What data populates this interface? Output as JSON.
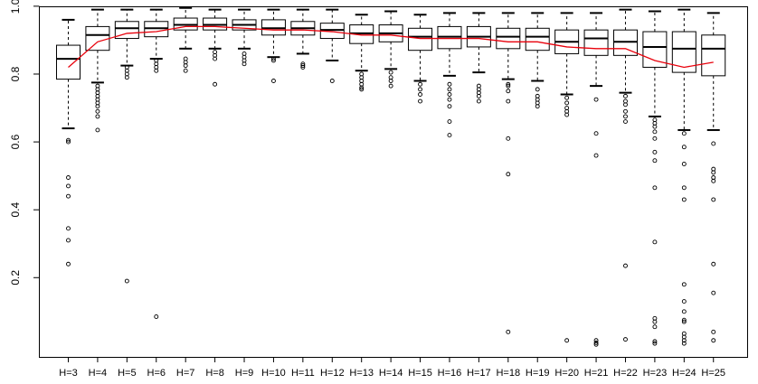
{
  "chart_data": {
    "type": "boxplot",
    "title": "",
    "xlabel": "",
    "ylabel": "",
    "ylim": [
      0.0,
      1.02
    ],
    "yticks": [
      {
        "value": 0.2,
        "label": "0.2"
      },
      {
        "value": 0.4,
        "label": "0.4"
      },
      {
        "value": 0.6,
        "label": "0.6"
      },
      {
        "value": 0.8,
        "label": "0.8"
      },
      {
        "value": 1.0,
        "label": "1.0"
      }
    ],
    "grid": false,
    "legend": "none",
    "colors": {
      "box": "#000000",
      "trend": "#e8000b"
    },
    "categories": [
      "H=3",
      "H=4",
      "H=5",
      "H=6",
      "H=7",
      "H=8",
      "H=9",
      "H=10",
      "H=11",
      "H=12",
      "H=13",
      "H=14",
      "H=15",
      "H=16",
      "H=17",
      "H=18",
      "H=19",
      "H=20",
      "H=21",
      "H=22",
      "H=23",
      "H=24",
      "H=25"
    ],
    "boxes": [
      {
        "low": 0.64,
        "q1": 0.785,
        "median": 0.845,
        "q3": 0.885,
        "high": 0.96,
        "outliers": [
          0.605,
          0.6,
          0.495,
          0.47,
          0.44,
          0.345,
          0.31,
          0.24
        ]
      },
      {
        "low": 0.775,
        "q1": 0.87,
        "median": 0.915,
        "q3": 0.94,
        "high": 0.99,
        "outliers": [
          0.765,
          0.755,
          0.745,
          0.735,
          0.725,
          0.715,
          0.705,
          0.69,
          0.675,
          0.635
        ]
      },
      {
        "low": 0.825,
        "q1": 0.905,
        "median": 0.935,
        "q3": 0.955,
        "high": 0.99,
        "outliers": [
          0.82,
          0.81,
          0.8,
          0.79,
          0.19
        ]
      },
      {
        "low": 0.845,
        "q1": 0.91,
        "median": 0.935,
        "q3": 0.955,
        "high": 0.99,
        "outliers": [
          0.84,
          0.83,
          0.82,
          0.81,
          0.085
        ]
      },
      {
        "low": 0.875,
        "q1": 0.93,
        "median": 0.945,
        "q3": 0.965,
        "high": 0.995,
        "outliers": [
          0.845,
          0.835,
          0.825,
          0.81
        ]
      },
      {
        "low": 0.875,
        "q1": 0.93,
        "median": 0.945,
        "q3": 0.965,
        "high": 0.99,
        "outliers": [
          0.865,
          0.855,
          0.845,
          0.77
        ]
      },
      {
        "low": 0.875,
        "q1": 0.93,
        "median": 0.945,
        "q3": 0.96,
        "high": 0.99,
        "outliers": [
          0.86,
          0.85,
          0.84,
          0.83
        ]
      },
      {
        "low": 0.85,
        "q1": 0.915,
        "median": 0.935,
        "q3": 0.96,
        "high": 0.99,
        "outliers": [
          0.845,
          0.84,
          0.78
        ]
      },
      {
        "low": 0.86,
        "q1": 0.915,
        "median": 0.935,
        "q3": 0.955,
        "high": 0.99,
        "outliers": [
          0.83,
          0.825,
          0.82
        ]
      },
      {
        "low": 0.84,
        "q1": 0.905,
        "median": 0.93,
        "q3": 0.95,
        "high": 0.99,
        "outliers": [
          0.78
        ]
      },
      {
        "low": 0.81,
        "q1": 0.89,
        "median": 0.92,
        "q3": 0.945,
        "high": 0.975,
        "outliers": [
          0.8,
          0.79,
          0.78,
          0.77,
          0.76,
          0.755
        ]
      },
      {
        "low": 0.815,
        "q1": 0.895,
        "median": 0.92,
        "q3": 0.945,
        "high": 0.985,
        "outliers": [
          0.805,
          0.79,
          0.78,
          0.765
        ]
      },
      {
        "low": 0.78,
        "q1": 0.87,
        "median": 0.91,
        "q3": 0.935,
        "high": 0.975,
        "outliers": [
          0.77,
          0.755,
          0.74,
          0.72
        ]
      },
      {
        "low": 0.795,
        "q1": 0.875,
        "median": 0.91,
        "q3": 0.94,
        "high": 0.98,
        "outliers": [
          0.77,
          0.755,
          0.74,
          0.725,
          0.705,
          0.66,
          0.62
        ]
      },
      {
        "low": 0.805,
        "q1": 0.88,
        "median": 0.91,
        "q3": 0.94,
        "high": 0.98,
        "outliers": [
          0.765,
          0.755,
          0.745,
          0.735,
          0.72
        ]
      },
      {
        "low": 0.785,
        "q1": 0.875,
        "median": 0.91,
        "q3": 0.935,
        "high": 0.98,
        "outliers": [
          0.77,
          0.765,
          0.75,
          0.72,
          0.61,
          0.505,
          0.04
        ]
      },
      {
        "low": 0.78,
        "q1": 0.87,
        "median": 0.91,
        "q3": 0.935,
        "high": 0.98,
        "outliers": [
          0.755,
          0.735,
          0.725,
          0.715,
          0.705
        ]
      },
      {
        "low": 0.74,
        "q1": 0.86,
        "median": 0.895,
        "q3": 0.93,
        "high": 0.98,
        "outliers": [
          0.73,
          0.715,
          0.7,
          0.69,
          0.68,
          0.015
        ]
      },
      {
        "low": 0.765,
        "q1": 0.855,
        "median": 0.905,
        "q3": 0.93,
        "high": 0.98,
        "outliers": [
          0.725,
          0.625,
          0.56,
          0.015,
          0.008,
          0.003
        ]
      },
      {
        "low": 0.745,
        "q1": 0.855,
        "median": 0.895,
        "q3": 0.93,
        "high": 0.99,
        "outliers": [
          0.735,
          0.72,
          0.71,
          0.69,
          0.675,
          0.66,
          0.235,
          0.018
        ]
      },
      {
        "low": 0.675,
        "q1": 0.82,
        "median": 0.88,
        "q3": 0.925,
        "high": 0.985,
        "outliers": [
          0.665,
          0.655,
          0.645,
          0.63,
          0.61,
          0.57,
          0.545,
          0.465,
          0.305,
          0.08,
          0.07,
          0.055,
          0.012,
          0.006
        ]
      },
      {
        "low": 0.635,
        "q1": 0.805,
        "median": 0.875,
        "q3": 0.925,
        "high": 0.99,
        "outliers": [
          0.625,
          0.585,
          0.535,
          0.465,
          0.43,
          0.18,
          0.13,
          0.1,
          0.075,
          0.07,
          0.035,
          0.025,
          0.015,
          0.006
        ]
      },
      {
        "low": 0.635,
        "q1": 0.795,
        "median": 0.875,
        "q3": 0.915,
        "high": 0.98,
        "outliers": [
          0.595,
          0.52,
          0.51,
          0.495,
          0.485,
          0.43,
          0.24,
          0.155,
          0.04,
          0.015
        ]
      }
    ],
    "trend": {
      "values": [
        0.82,
        0.895,
        0.92,
        0.925,
        0.94,
        0.94,
        0.935,
        0.93,
        0.93,
        0.925,
        0.915,
        0.915,
        0.905,
        0.905,
        0.905,
        0.895,
        0.895,
        0.88,
        0.875,
        0.875,
        0.84,
        0.82,
        0.835
      ]
    }
  }
}
